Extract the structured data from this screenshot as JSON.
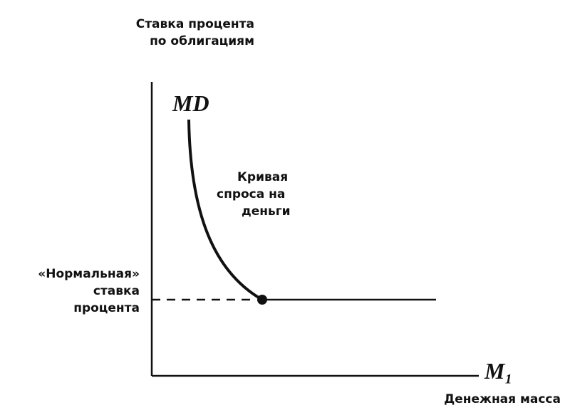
{
  "y_axis_label": [
    "Ставка процента",
    "по облигациям"
  ],
  "curve_label": "MD",
  "curve_annotation": [
    "Кривая",
    "спроса на",
    "деньги"
  ],
  "level_label": [
    "«Нормальная»",
    "ставка",
    "процента"
  ],
  "x_axis_symbol": "M₁",
  "x_axis_label": "Денежная масса"
}
